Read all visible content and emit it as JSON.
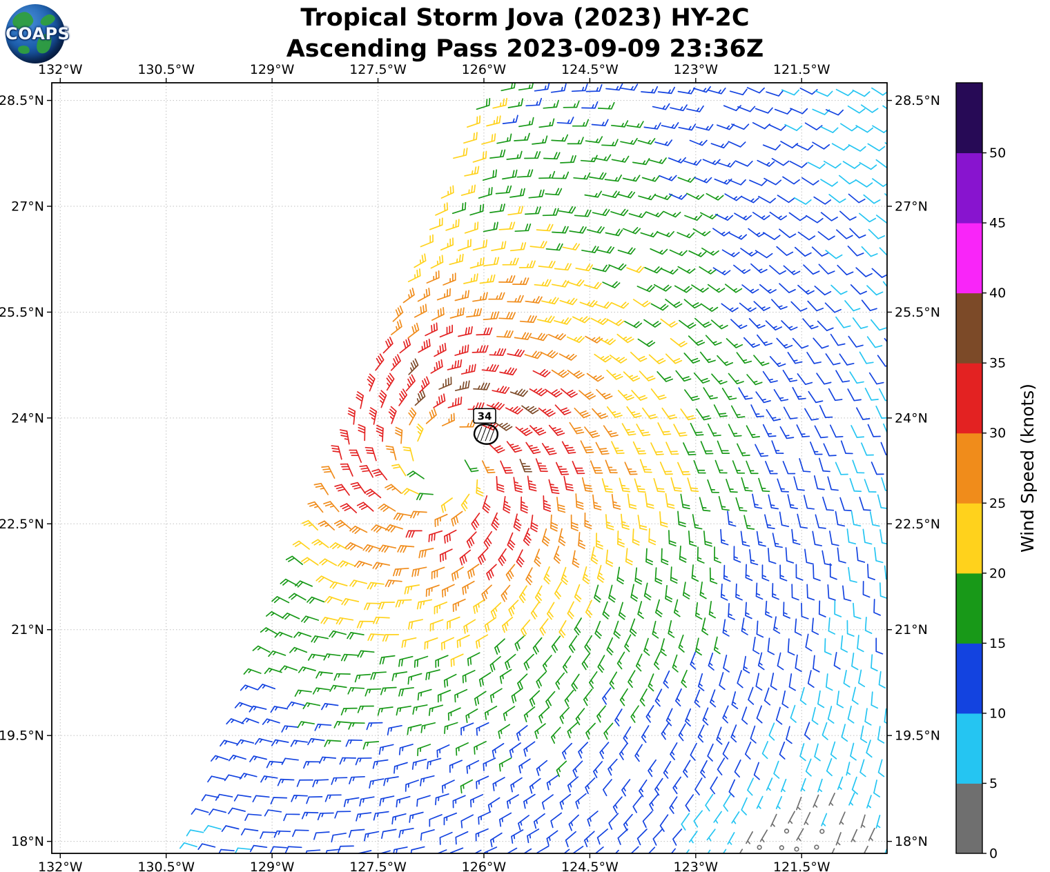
{
  "logo": {
    "text": "COAPS"
  },
  "header": {
    "title_line1": "Tropical Storm Jova (2023) HY-2C",
    "title_line2": "Ascending Pass 2023-09-09 23:36Z"
  },
  "chart_data": {
    "type": "scatter",
    "subtype": "wind-barb-vector-field",
    "title": "Tropical Storm Jova (2023) HY-2C",
    "subtitle": "Ascending Pass 2023-09-09 23:36Z",
    "xlim": [
      -132.12,
      -120.29
    ],
    "ylim": [
      17.83,
      28.75
    ],
    "x_ticks": [
      {
        "value": -132.0,
        "label": "132°W"
      },
      {
        "value": -130.5,
        "label": "130.5°W"
      },
      {
        "value": -129.0,
        "label": "129°W"
      },
      {
        "value": -127.5,
        "label": "127.5°W"
      },
      {
        "value": -126.0,
        "label": "126°W"
      },
      {
        "value": -124.5,
        "label": "124.5°W"
      },
      {
        "value": -123.0,
        "label": "123°W"
      },
      {
        "value": -121.5,
        "label": "121.5°W"
      }
    ],
    "y_ticks": [
      {
        "value": 28.5,
        "label": "28.5°N"
      },
      {
        "value": 27.0,
        "label": "27°N"
      },
      {
        "value": 25.5,
        "label": "25.5°N"
      },
      {
        "value": 24.0,
        "label": "24°N"
      },
      {
        "value": 22.5,
        "label": "22.5°N"
      },
      {
        "value": 21.0,
        "label": "21°N"
      },
      {
        "value": 19.5,
        "label": "19.5°N"
      },
      {
        "value": 18.0,
        "label": "18°N"
      }
    ],
    "grid": {
      "show": true,
      "style": "dotted",
      "color": "#bfbfbf"
    },
    "wind_field": {
      "barb_spacing_deg": 0.25,
      "storm_center": {
        "lon": -126.55,
        "lat": 23.35
      },
      "max_wind_kt": 33.5,
      "radius_max_wind_deg": 0.9,
      "reference": {
        "speed_kt": 16,
        "radius_deg": 4.2,
        "falloff_exponent": 0.683
      },
      "inflow_factor": 0.35,
      "rotation": "counterclockwise",
      "asymmetry": {
        "north": 0.1,
        "east": 0.06
      },
      "east_weakening": {
        "start_lon": -123.3,
        "full_lon": -121.0,
        "min_factor": 0.76
      },
      "calm_spot": {
        "lon": -121.7,
        "lat": 17.5,
        "radius_deg": 2.0,
        "floor_factor": 0.15
      },
      "swath_left_edge": {
        "lat_ref": 17.83,
        "lon_ref": -130.14,
        "dlon_dlat": 0.375
      },
      "edge_band": {
        "inner_width_deg": 0.3,
        "inner_min_kt": 22,
        "outer_width_deg": 0.62,
        "outer_min_kt": 17,
        "min_lat": 24.2
      }
    },
    "contour": {
      "label": "34",
      "lon": -125.98,
      "lat": 23.8
    },
    "colorbar": {
      "label": "Wind Speed (knots)",
      "tick_values": [
        0,
        5,
        10,
        15,
        20,
        25,
        30,
        35,
        40,
        45,
        50
      ],
      "bin_size_kt": 5,
      "max_value": 55,
      "colors_bottom_to_top": [
        "#6f6f6f",
        "#25c5f2",
        "#1343e0",
        "#189918",
        "#ffd21c",
        "#f08c1b",
        "#e32222",
        "#7c4a28",
        "#f925f9",
        "#8814cf",
        "#270a56"
      ]
    }
  }
}
